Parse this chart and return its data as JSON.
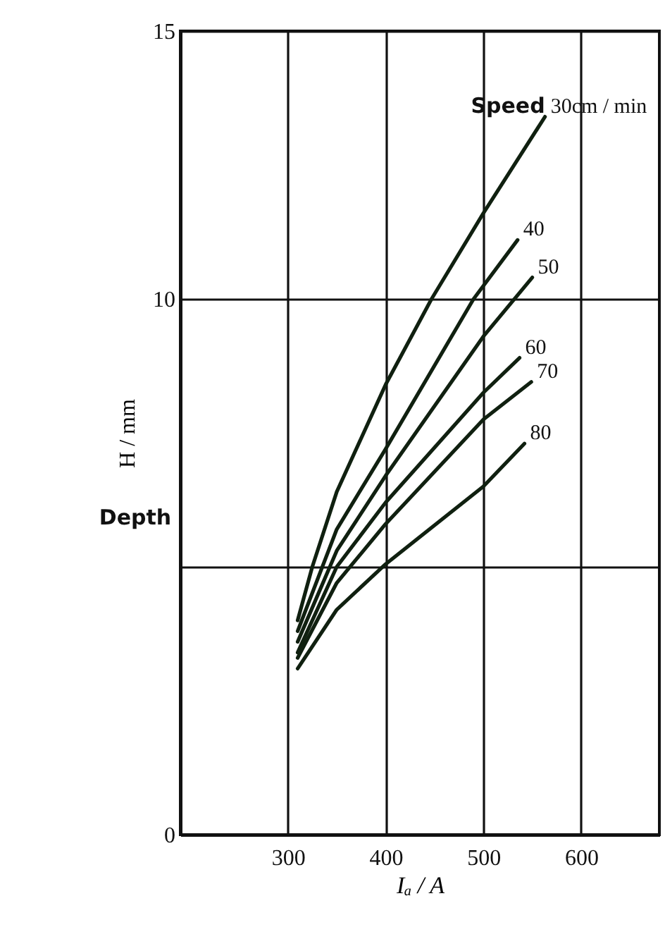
{
  "chart_data": {
    "type": "line",
    "xlabel": "Iₐ / A",
    "ylabel": "H / mm",
    "annotations": [
      "Speed",
      "Depth"
    ],
    "xlim": [
      190,
      680
    ],
    "ylim": [
      0,
      15
    ],
    "xticks": [
      300,
      400,
      500,
      600
    ],
    "yticks": [
      0,
      {
        "value": 5,
        "label": null
      },
      10,
      15
    ],
    "grid": true,
    "marker": "none",
    "line_style": "solid",
    "series": [
      {
        "name": "30cm / min",
        "color": "#102010",
        "x": [
          310,
          325,
          350,
          400,
          447,
          500,
          563
        ],
        "values": [
          4.0,
          5.0,
          6.4,
          8.4,
          10.0,
          11.6,
          13.4
        ]
      },
      {
        "name": "40",
        "color": "#102010",
        "x": [
          310,
          350,
          400,
          490,
          535
        ],
        "values": [
          3.8,
          5.7,
          7.2,
          10.0,
          11.1
        ]
      },
      {
        "name": "50",
        "color": "#102010",
        "x": [
          310,
          350,
          400,
          500,
          550
        ],
        "values": [
          3.6,
          5.3,
          6.7,
          9.3,
          10.4
        ]
      },
      {
        "name": "60",
        "color": "#102010",
        "x": [
          310,
          350,
          400,
          500,
          537
        ],
        "values": [
          3.4,
          5.0,
          6.2,
          8.25,
          8.9
        ]
      },
      {
        "name": "70",
        "color": "#102010",
        "x": [
          310,
          350,
          400,
          500,
          549
        ],
        "values": [
          3.3,
          4.7,
          5.8,
          7.75,
          8.45
        ]
      },
      {
        "name": "80",
        "color": "#102010",
        "x": [
          310,
          350,
          400,
          500,
          542
        ],
        "values": [
          3.1,
          4.2,
          5.05,
          6.5,
          7.3
        ]
      }
    ]
  }
}
